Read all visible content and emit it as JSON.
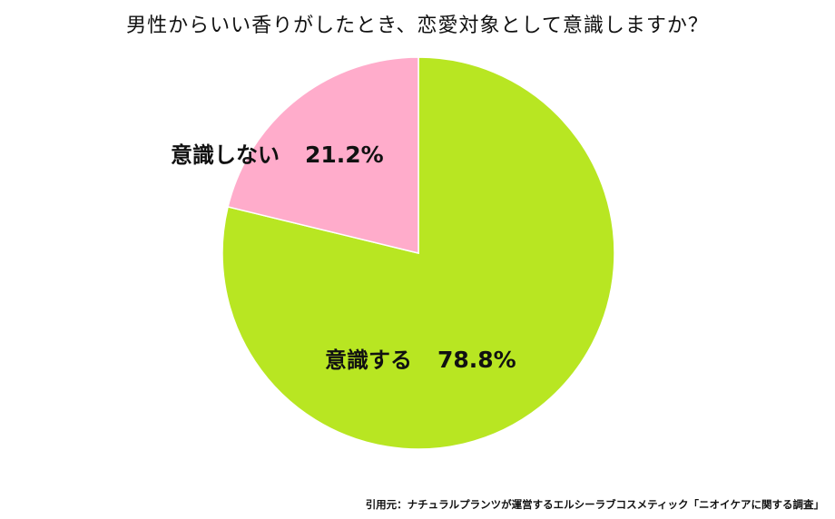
{
  "chart_data": {
    "type": "pie",
    "title": "男性からいい香りがしたとき、恋愛対象として意識しますか？",
    "slices": [
      {
        "label": "意識する",
        "value": 78.8,
        "display": "78.8%",
        "color": "#b8e622"
      },
      {
        "label": "意識しない",
        "value": 21.2,
        "display": "21.2%",
        "color": "#ffaccb"
      }
    ]
  },
  "footer": {
    "source": "引用元：ナチュラルプランツが運営するエルシーラブコスメティック「ニオイケアに関する調査」"
  }
}
